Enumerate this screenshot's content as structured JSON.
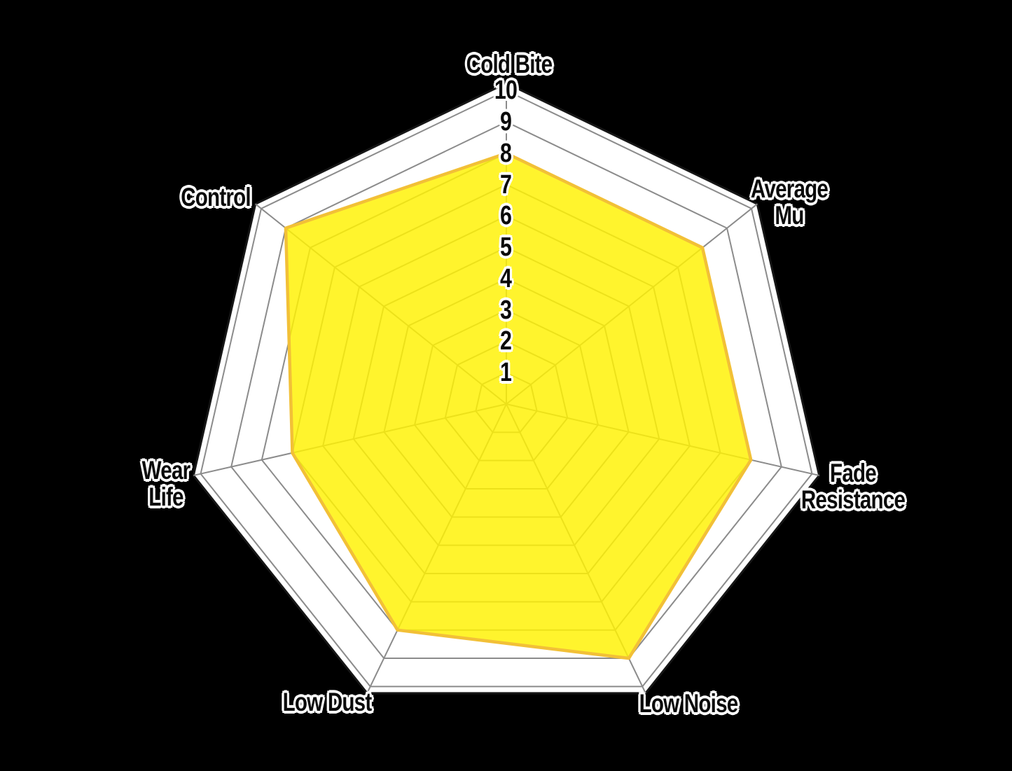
{
  "chart_data": {
    "type": "radar",
    "axes": [
      {
        "label": "Cold Bite",
        "value": 8
      },
      {
        "label": "Average Mu",
        "value": 8
      },
      {
        "label": "Fade Resistance",
        "value": 8
      },
      {
        "label": "Low Noise",
        "value": 9
      },
      {
        "label": "Low Dust",
        "value": 8
      },
      {
        "label": "Wear Life",
        "value": 7
      },
      {
        "label": "Control",
        "value": 9
      }
    ],
    "scale": {
      "min": 0,
      "max": 10,
      "ticks": [
        "1",
        "2",
        "3",
        "4",
        "5",
        "6",
        "7",
        "8",
        "9",
        "10"
      ]
    },
    "legend": "none",
    "grid": "on",
    "colors": {
      "background": "#000000",
      "web_fill": "#ffffff",
      "grid_line": "#8b8b8b",
      "outer_border": "#161616",
      "series_fill": "#fff205",
      "series_stroke": "#f2c037",
      "label_text": "#0a0a0a",
      "label_halo": "#ffffff"
    }
  }
}
